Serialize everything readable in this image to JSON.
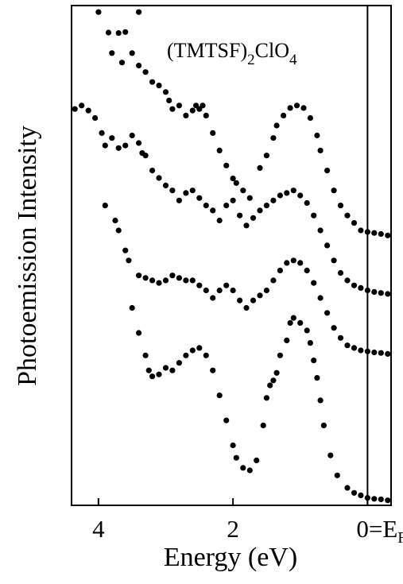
{
  "chart_data": {
    "type": "scatter",
    "title": "",
    "annotation": {
      "text_main": "(TMTSF)",
      "subscript1": "2",
      "text_mid": "ClO",
      "subscript2": "4"
    },
    "xlabel": "Energy  (eV)",
    "ylabel": "Photoemission Intensity",
    "x_reversed": true,
    "xlim": [
      4.4,
      -0.35
    ],
    "ylim": [
      0,
      1
    ],
    "x_ticks": [
      {
        "value": 4,
        "label": "4"
      },
      {
        "value": 2,
        "label": "2"
      },
      {
        "value": 0,
        "label": "0=E",
        "sub": "F"
      }
    ],
    "y_ticks": [],
    "grid": false,
    "vertical_line_at": 0,
    "series": [
      {
        "points": [
          [
            4.0,
            0.987
          ],
          [
            3.7,
            0.945
          ],
          [
            3.6,
            0.947
          ],
          [
            3.4,
            0.987
          ],
          [
            3.85,
            0.946
          ],
          [
            3.8,
            0.905
          ],
          [
            3.65,
            0.886
          ],
          [
            3.5,
            0.905
          ],
          [
            3.4,
            0.88
          ],
          [
            3.3,
            0.867
          ],
          [
            3.2,
            0.847
          ],
          [
            3.1,
            0.84
          ],
          [
            3.0,
            0.827
          ],
          [
            2.95,
            0.81
          ],
          [
            2.9,
            0.793
          ],
          [
            2.8,
            0.8
          ],
          [
            2.7,
            0.78
          ],
          [
            2.6,
            0.79
          ],
          [
            2.55,
            0.8
          ],
          [
            2.5,
            0.793
          ],
          [
            2.45,
            0.8
          ],
          [
            2.4,
            0.78
          ],
          [
            2.3,
            0.745
          ],
          [
            2.2,
            0.71
          ],
          [
            2.1,
            0.68
          ],
          [
            2.0,
            0.654
          ],
          [
            1.95,
            0.645
          ],
          [
            1.85,
            0.63
          ],
          [
            1.75,
            0.615
          ],
          [
            1.6,
            0.675
          ],
          [
            1.5,
            0.7
          ],
          [
            1.4,
            0.735
          ],
          [
            1.35,
            0.76
          ],
          [
            1.25,
            0.78
          ],
          [
            1.15,
            0.795
          ],
          [
            1.05,
            0.8
          ],
          [
            0.95,
            0.795
          ],
          [
            0.85,
            0.775
          ],
          [
            0.75,
            0.74
          ],
          [
            0.7,
            0.71
          ],
          [
            0.6,
            0.67
          ],
          [
            0.5,
            0.63
          ],
          [
            0.4,
            0.6
          ],
          [
            0.3,
            0.58
          ],
          [
            0.2,
            0.565
          ],
          [
            0.1,
            0.55
          ],
          [
            0.0,
            0.547
          ],
          [
            -0.1,
            0.545
          ],
          [
            -0.2,
            0.543
          ],
          [
            -0.3,
            0.54
          ]
        ]
      },
      {
        "points": [
          [
            4.35,
            0.793
          ],
          [
            4.25,
            0.8
          ],
          [
            4.15,
            0.79
          ],
          [
            4.05,
            0.775
          ],
          [
            3.95,
            0.745
          ],
          [
            3.9,
            0.72
          ],
          [
            3.8,
            0.735
          ],
          [
            3.7,
            0.715
          ],
          [
            3.6,
            0.72
          ],
          [
            3.5,
            0.74
          ],
          [
            3.4,
            0.725
          ],
          [
            3.35,
            0.705
          ],
          [
            3.3,
            0.7
          ],
          [
            3.2,
            0.67
          ],
          [
            3.1,
            0.655
          ],
          [
            3.0,
            0.64
          ],
          [
            2.9,
            0.63
          ],
          [
            2.8,
            0.61
          ],
          [
            2.7,
            0.625
          ],
          [
            2.6,
            0.63
          ],
          [
            2.5,
            0.615
          ],
          [
            2.4,
            0.6
          ],
          [
            2.3,
            0.59
          ],
          [
            2.2,
            0.57
          ],
          [
            2.1,
            0.6
          ],
          [
            2.0,
            0.61
          ],
          [
            1.9,
            0.58
          ],
          [
            1.8,
            0.56
          ],
          [
            1.7,
            0.575
          ],
          [
            1.6,
            0.59
          ],
          [
            1.5,
            0.6
          ],
          [
            1.4,
            0.61
          ],
          [
            1.3,
            0.62
          ],
          [
            1.2,
            0.625
          ],
          [
            1.1,
            0.63
          ],
          [
            1.0,
            0.62
          ],
          [
            0.9,
            0.605
          ],
          [
            0.8,
            0.58
          ],
          [
            0.7,
            0.55
          ],
          [
            0.6,
            0.52
          ],
          [
            0.5,
            0.49
          ],
          [
            0.4,
            0.465
          ],
          [
            0.3,
            0.45
          ],
          [
            0.2,
            0.44
          ],
          [
            0.1,
            0.435
          ],
          [
            0.0,
            0.43
          ],
          [
            -0.1,
            0.427
          ],
          [
            -0.2,
            0.425
          ],
          [
            -0.3,
            0.423
          ]
        ]
      },
      {
        "points": [
          [
            3.9,
            0.6
          ],
          [
            3.75,
            0.57
          ],
          [
            3.7,
            0.55
          ],
          [
            3.6,
            0.51
          ],
          [
            3.55,
            0.49
          ],
          [
            3.4,
            0.46
          ],
          [
            3.3,
            0.455
          ],
          [
            3.2,
            0.45
          ],
          [
            3.1,
            0.445
          ],
          [
            3.0,
            0.45
          ],
          [
            2.9,
            0.46
          ],
          [
            2.8,
            0.455
          ],
          [
            2.7,
            0.45
          ],
          [
            2.6,
            0.45
          ],
          [
            2.5,
            0.44
          ],
          [
            2.4,
            0.43
          ],
          [
            2.3,
            0.415
          ],
          [
            2.2,
            0.43
          ],
          [
            2.1,
            0.44
          ],
          [
            2.0,
            0.43
          ],
          [
            1.9,
            0.41
          ],
          [
            1.8,
            0.395
          ],
          [
            1.7,
            0.41
          ],
          [
            1.6,
            0.42
          ],
          [
            1.5,
            0.43
          ],
          [
            1.4,
            0.45
          ],
          [
            1.3,
            0.47
          ],
          [
            1.2,
            0.485
          ],
          [
            1.1,
            0.49
          ],
          [
            1.0,
            0.485
          ],
          [
            0.9,
            0.47
          ],
          [
            0.8,
            0.445
          ],
          [
            0.7,
            0.415
          ],
          [
            0.6,
            0.385
          ],
          [
            0.5,
            0.355
          ],
          [
            0.4,
            0.335
          ],
          [
            0.3,
            0.32
          ],
          [
            0.2,
            0.315
          ],
          [
            0.1,
            0.31
          ],
          [
            0.0,
            0.308
          ],
          [
            -0.1,
            0.306
          ],
          [
            -0.2,
            0.305
          ],
          [
            -0.3,
            0.303
          ]
        ]
      },
      {
        "points": [
          [
            3.5,
            0.395
          ],
          [
            3.4,
            0.345
          ],
          [
            3.3,
            0.3
          ],
          [
            3.25,
            0.27
          ],
          [
            3.2,
            0.258
          ],
          [
            3.1,
            0.262
          ],
          [
            3.0,
            0.275
          ],
          [
            2.9,
            0.27
          ],
          [
            2.8,
            0.285
          ],
          [
            2.7,
            0.3
          ],
          [
            2.6,
            0.31
          ],
          [
            2.5,
            0.315
          ],
          [
            2.4,
            0.3
          ],
          [
            2.3,
            0.27
          ],
          [
            2.2,
            0.22
          ],
          [
            2.1,
            0.17
          ],
          [
            2.0,
            0.12
          ],
          [
            1.95,
            0.095
          ],
          [
            1.85,
            0.075
          ],
          [
            1.75,
            0.07
          ],
          [
            1.65,
            0.09
          ],
          [
            1.55,
            0.16
          ],
          [
            1.5,
            0.215
          ],
          [
            1.45,
            0.24
          ],
          [
            1.4,
            0.25
          ],
          [
            1.35,
            0.265
          ],
          [
            1.3,
            0.3
          ],
          [
            1.2,
            0.33
          ],
          [
            1.15,
            0.365
          ],
          [
            1.1,
            0.375
          ],
          [
            1.0,
            0.365
          ],
          [
            0.9,
            0.35
          ],
          [
            0.85,
            0.325
          ],
          [
            0.8,
            0.29
          ],
          [
            0.75,
            0.255
          ],
          [
            0.7,
            0.21
          ],
          [
            0.65,
            0.16
          ],
          [
            0.55,
            0.1
          ],
          [
            0.45,
            0.06
          ],
          [
            0.3,
            0.035
          ],
          [
            0.2,
            0.025
          ],
          [
            0.1,
            0.02
          ],
          [
            0.0,
            0.015
          ],
          [
            -0.1,
            0.013
          ],
          [
            -0.2,
            0.012
          ],
          [
            -0.3,
            0.01
          ]
        ]
      }
    ]
  }
}
